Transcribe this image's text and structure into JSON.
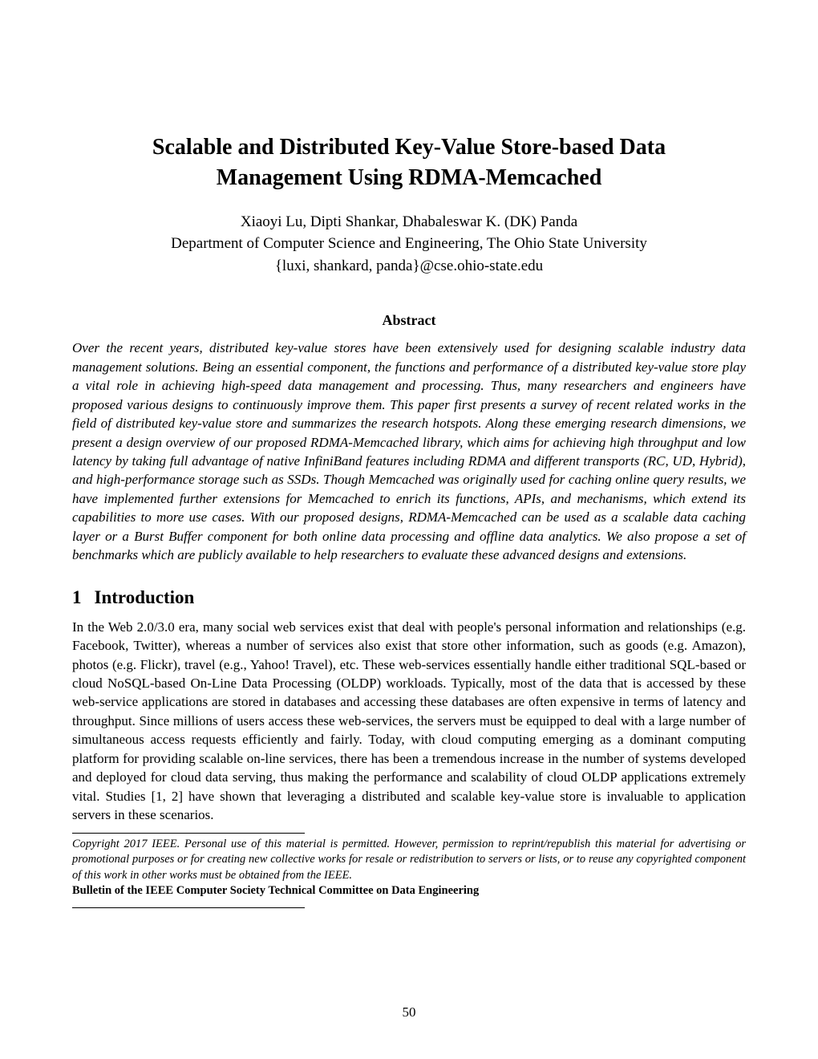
{
  "title_line1": "Scalable and Distributed Key-Value Store-based Data",
  "title_line2": "Management Using RDMA-Memcached",
  "authors": "Xiaoyi Lu, Dipti Shankar, Dhabaleswar K. (DK) Panda",
  "affiliation": "Department of Computer Science and Engineering, The Ohio State University",
  "emails": "{luxi, shankard, panda}@cse.ohio-state.edu",
  "abstract_heading": "Abstract",
  "abstract": "Over the recent years, distributed key-value stores have been extensively used for designing scalable industry data management solutions. Being an essential component, the functions and performance of a distributed key-value store play a vital role in achieving high-speed data management and processing. Thus, many researchers and engineers have proposed various designs to continuously improve them. This paper first presents a survey of recent related works in the field of distributed key-value store and summarizes the research hotspots. Along these emerging research dimensions, we present a design overview of our proposed RDMA-Memcached library, which aims for achieving high throughput and low latency by taking full advantage of native InfiniBand features including RDMA and different transports (RC, UD, Hybrid), and high-performance storage such as SSDs. Though Memcached was originally used for caching online query results, we have implemented further extensions for Memcached to enrich its functions, APIs, and mechanisms, which extend its capabilities to more use cases. With our proposed designs, RDMA-Memcached can be used as a scalable data caching layer or a Burst Buffer component for both online data processing and offline data analytics. We also propose a set of benchmarks which are publicly available to help researchers to evaluate these advanced designs and extensions.",
  "section1_number": "1",
  "section1_title": "Introduction",
  "intro_para": "In the Web 2.0/3.0 era, many social web services exist that deal with people's personal information and relationships (e.g. Facebook, Twitter), whereas a number of services also exist that store other information, such as goods (e.g. Amazon), photos (e.g. Flickr), travel (e.g., Yahoo! Travel), etc. These web-services essentially handle either traditional SQL-based or cloud NoSQL-based On-Line Data Processing (OLDP) workloads. Typically, most of the data that is accessed by these web-service applications are stored in databases and accessing these databases are often expensive in terms of latency and throughput. Since millions of users access these web-services, the servers must be equipped to deal with a large number of simultaneous access requests efficiently and fairly. Today, with cloud computing emerging as a dominant computing platform for providing scalable on-line services, there has been a tremendous increase in the number of systems developed and deployed for cloud data serving, thus making the performance and scalability of cloud OLDP applications extremely vital. Studies [1, 2] have shown that leveraging a distributed and scalable key-value store is invaluable to application servers in these scenarios.",
  "footnote_copyright": "Copyright 2017 IEEE. Personal use of this material is permitted. However, permission to reprint/republish this material for advertising or promotional purposes or for creating new collective works for resale or redistribution to servers or lists, or to reuse any copyrighted component of this work in other works must be obtained from the IEEE.",
  "footnote_bulletin": "Bulletin of the IEEE Computer Society Technical Committee on Data Engineering",
  "page_number": "50"
}
